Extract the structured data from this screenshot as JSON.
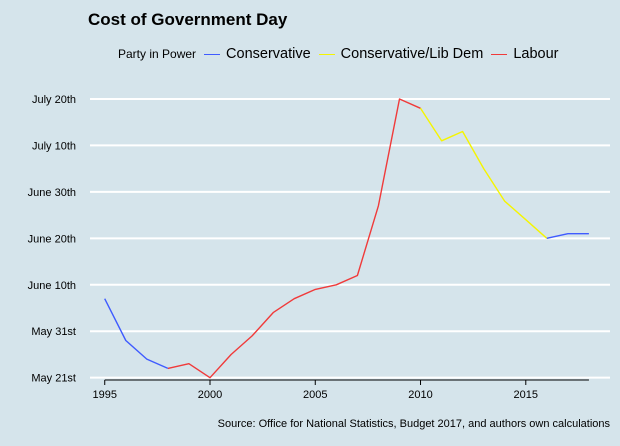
{
  "legend": {
    "title": "Party in Power",
    "items": [
      {
        "label": "Conservative",
        "color": "#3f5bff"
      },
      {
        "label": "Conservative/Lib Dem",
        "color": "#f5f500"
      },
      {
        "label": "Labour",
        "color": "#f03a3a"
      }
    ]
  },
  "caption": "Source: Office for National Statistics, Budget 2017, and authors own calculations",
  "chart_data": {
    "type": "line",
    "title": "Cost of Government Day",
    "xlabel": "",
    "ylabel": "",
    "xlim": [
      1994.3,
      2019
    ],
    "ylim": [
      140.5,
      202.5
    ],
    "y_unit": "day of year",
    "grid": "horizontal",
    "legend_position": "top",
    "x_ticks": [
      1995,
      2000,
      2005,
      2010,
      2015
    ],
    "y_ticks": [
      {
        "value": 141,
        "label": "May 21st"
      },
      {
        "value": 151,
        "label": "May 31st"
      },
      {
        "value": 161,
        "label": "June 10th"
      },
      {
        "value": 171,
        "label": "June 20th"
      },
      {
        "value": 181,
        "label": "June 30th"
      },
      {
        "value": 191,
        "label": "July 10th"
      },
      {
        "value": 201,
        "label": "July 20th"
      }
    ],
    "series": [
      {
        "name": "Conservative",
        "color": "#3f5bff",
        "x": [
          1995,
          1996,
          1997,
          1998
        ],
        "y": [
          158,
          149,
          145,
          143
        ]
      },
      {
        "name": "Labour",
        "color": "#f03a3a",
        "x": [
          1998,
          1999,
          2000,
          2001,
          2002,
          2003,
          2004,
          2005,
          2006,
          2007,
          2008,
          2009,
          2010
        ],
        "y": [
          143,
          144,
          141,
          146,
          150,
          155,
          158,
          160,
          161,
          163,
          178,
          201,
          199
        ]
      },
      {
        "name": "Conservative/Lib Dem",
        "color": "#f5f500",
        "x": [
          2010,
          2011,
          2012,
          2013,
          2014,
          2015,
          2016
        ],
        "y": [
          199,
          192,
          194,
          186,
          179,
          175,
          171
        ]
      },
      {
        "name": "Conservative",
        "color": "#3f5bff",
        "x": [
          2016,
          2017,
          2018
        ],
        "y": [
          171,
          172,
          172
        ]
      }
    ]
  }
}
